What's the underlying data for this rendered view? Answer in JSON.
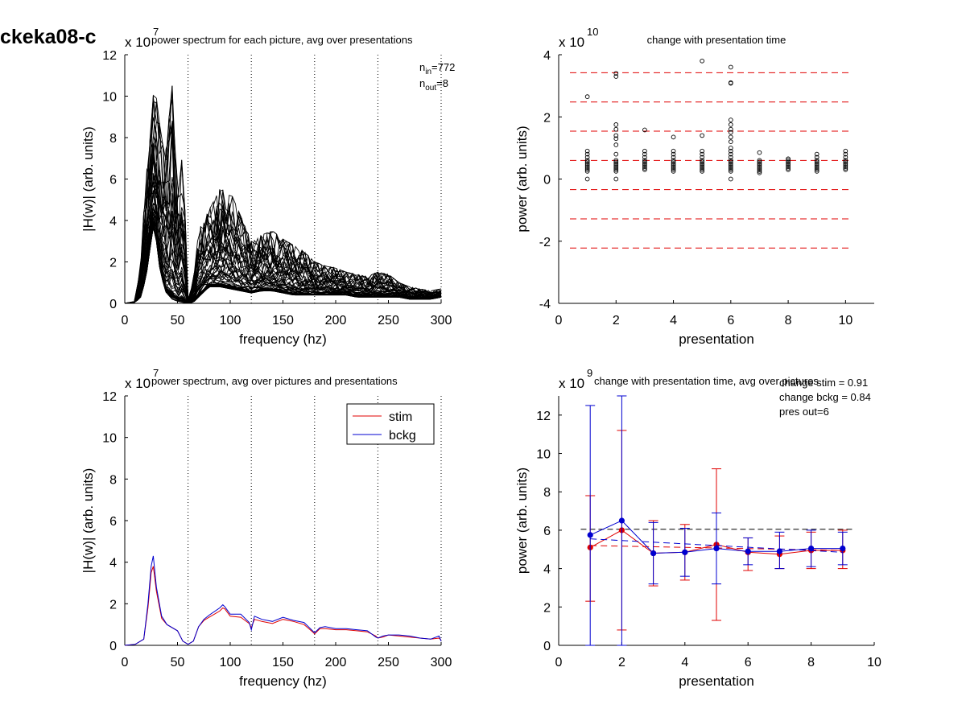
{
  "figure": {
    "title": "ckeka08-c"
  },
  "chart_data": [
    {
      "type": "line",
      "title": "power spectrum for each picture, avg over presentations",
      "xlabel": "frequency (hz)",
      "ylabel": "|H(w)| (arb. units)",
      "exponent_label": "x 10",
      "exponent_power": "7",
      "xlim": [
        0,
        300
      ],
      "ylim": [
        0,
        12
      ],
      "xticks": [
        "0",
        "50",
        "100",
        "150",
        "200",
        "250",
        "300"
      ],
      "yticks": [
        "0",
        "2",
        "4",
        "6",
        "8",
        "10",
        "12"
      ],
      "vlines": [
        60,
        120,
        180,
        240,
        300
      ],
      "annotations": {
        "n_in": "n",
        "n_in_sub": "in",
        "n_in_val": "=772",
        "n_out": "n",
        "n_out_sub": "out",
        "n_out_val": "=8"
      },
      "series_description": "many overlapping black traces (one per picture)",
      "envelope": {
        "x": [
          0,
          10,
          15,
          20,
          25,
          28,
          32,
          38,
          45,
          50,
          55,
          60,
          65,
          70,
          80,
          90,
          100,
          110,
          120,
          130,
          140,
          150,
          160,
          170,
          180,
          190,
          200,
          210,
          220,
          230,
          240,
          250,
          260,
          270,
          280,
          290,
          300
        ],
        "low": [
          0,
          0.05,
          0.3,
          1.2,
          3.0,
          4.0,
          2.0,
          0.6,
          0.2,
          0.1,
          0.05,
          0.0,
          0.05,
          0.3,
          0.8,
          0.8,
          0.7,
          0.6,
          0.5,
          0.6,
          0.6,
          0.5,
          0.4,
          0.4,
          0.4,
          0.4,
          0.4,
          0.4,
          0.3,
          0.3,
          0.3,
          0.3,
          0.3,
          0.2,
          0.2,
          0.2,
          0.3
        ],
        "high": [
          0,
          0.1,
          2.0,
          6.0,
          8.5,
          10.8,
          9.0,
          7.0,
          10.5,
          5.0,
          7.4,
          0.2,
          1.0,
          3.5,
          4.5,
          5.5,
          5.4,
          4.2,
          3.0,
          3.3,
          3.5,
          3.1,
          2.8,
          2.5,
          2.0,
          1.8,
          1.7,
          1.5,
          1.4,
          1.3,
          1.5,
          1.4,
          1.0,
          0.8,
          0.7,
          0.6,
          0.7
        ]
      }
    },
    {
      "type": "scatter",
      "title": "change with presentation time",
      "xlabel": "presentation",
      "ylabel": "power (arb. units)",
      "exponent_label": "x 10",
      "exponent_power": "10",
      "xlim": [
        0,
        11
      ],
      "ylim": [
        -4,
        4
      ],
      "xticks": [
        "0",
        "2",
        "4",
        "6",
        "8",
        "10"
      ],
      "yticks": [
        "-4",
        "-2",
        "0",
        "2",
        "4"
      ],
      "hlines_dashed_red": [
        3.42,
        2.48,
        1.54,
        0.6,
        -0.34,
        -1.28,
        -2.22
      ],
      "points": [
        {
          "x": 1,
          "y": [
            2.65,
            0.9,
            0.8,
            0.7,
            0.6,
            0.55,
            0.5,
            0.45,
            0.4,
            0.35,
            0.3,
            0.25,
            0.0
          ]
        },
        {
          "x": 2,
          "y": [
            3.4,
            3.3,
            1.75,
            1.6,
            1.4,
            1.3,
            1.1,
            0.8,
            0.6,
            0.55,
            0.5,
            0.45,
            0.4,
            0.35,
            0.3,
            0.25,
            0.0
          ]
        },
        {
          "x": 3,
          "y": [
            1.58,
            0.9,
            0.8,
            0.7,
            0.6,
            0.55,
            0.5,
            0.45,
            0.4,
            0.35,
            0.3
          ]
        },
        {
          "x": 4,
          "y": [
            1.35,
            0.9,
            0.8,
            0.7,
            0.6,
            0.55,
            0.5,
            0.45,
            0.4,
            0.35,
            0.3,
            0.25
          ]
        },
        {
          "x": 5,
          "y": [
            3.8,
            1.4,
            0.9,
            0.8,
            0.7,
            0.6,
            0.55,
            0.5,
            0.45,
            0.4,
            0.35,
            0.3,
            0.25
          ]
        },
        {
          "x": 6,
          "y": [
            3.6,
            3.1,
            3.08,
            1.9,
            1.75,
            1.6,
            1.5,
            1.35,
            1.2,
            1.0,
            0.9,
            0.8,
            0.7,
            0.6,
            0.55,
            0.5,
            0.45,
            0.4,
            0.35,
            0.3,
            0.25,
            0.0
          ]
        },
        {
          "x": 7,
          "y": [
            0.85,
            0.6,
            0.55,
            0.5,
            0.45,
            0.4,
            0.35,
            0.3,
            0.25,
            0.2
          ]
        },
        {
          "x": 8,
          "y": [
            0.65,
            0.6,
            0.55,
            0.5,
            0.45,
            0.4,
            0.35,
            0.3
          ]
        },
        {
          "x": 9,
          "y": [
            0.8,
            0.7,
            0.6,
            0.55,
            0.5,
            0.45,
            0.4,
            0.35,
            0.3,
            0.25
          ]
        },
        {
          "x": 10,
          "y": [
            0.9,
            0.8,
            0.7,
            0.6,
            0.55,
            0.5,
            0.45,
            0.4,
            0.35,
            0.3
          ]
        }
      ]
    },
    {
      "type": "line",
      "title": "power spectrum, avg over pictures and presentations",
      "xlabel": "frequency (hz)",
      "ylabel": "|H(w)| (arb. units)",
      "exponent_label": "x 10",
      "exponent_power": "7",
      "xlim": [
        0,
        300
      ],
      "ylim": [
        0,
        12
      ],
      "xticks": [
        "0",
        "50",
        "100",
        "150",
        "200",
        "250",
        "300"
      ],
      "yticks": [
        "0",
        "2",
        "4",
        "6",
        "8",
        "10",
        "12"
      ],
      "vlines": [
        60,
        120,
        180,
        240,
        300
      ],
      "legend": {
        "position": "top-right",
        "entries": [
          "stim",
          "bckg"
        ]
      },
      "x": [
        0,
        10,
        18,
        22,
        25,
        27,
        30,
        35,
        40,
        50,
        55,
        60,
        65,
        70,
        75,
        80,
        90,
        93,
        95,
        100,
        110,
        118,
        120,
        123,
        130,
        140,
        150,
        160,
        170,
        178,
        180,
        185,
        190,
        200,
        210,
        220,
        230,
        238,
        240,
        245,
        250,
        260,
        270,
        280,
        290,
        298,
        300
      ],
      "series": [
        {
          "name": "stim",
          "color": "#e00000",
          "values": [
            0.0,
            0.05,
            0.3,
            1.8,
            3.5,
            3.8,
            2.6,
            1.3,
            1.0,
            0.7,
            0.2,
            0.05,
            0.2,
            0.9,
            1.2,
            1.35,
            1.65,
            1.8,
            1.75,
            1.4,
            1.35,
            1.05,
            0.85,
            1.25,
            1.15,
            1.05,
            1.25,
            1.15,
            1.0,
            0.65,
            0.55,
            0.8,
            0.8,
            0.75,
            0.75,
            0.7,
            0.65,
            0.45,
            0.35,
            0.4,
            0.5,
            0.45,
            0.4,
            0.35,
            0.3,
            0.35,
            0.25
          ]
        },
        {
          "name": "bckg",
          "color": "#0000d0",
          "values": [
            0.0,
            0.05,
            0.3,
            2.0,
            3.8,
            4.3,
            2.8,
            1.4,
            1.0,
            0.7,
            0.2,
            0.05,
            0.2,
            0.9,
            1.25,
            1.45,
            1.8,
            1.95,
            1.85,
            1.5,
            1.5,
            1.1,
            0.75,
            1.4,
            1.25,
            1.15,
            1.35,
            1.2,
            1.1,
            0.7,
            0.6,
            0.85,
            0.9,
            0.8,
            0.8,
            0.75,
            0.7,
            0.4,
            0.35,
            0.45,
            0.5,
            0.5,
            0.45,
            0.35,
            0.3,
            0.45,
            0.2
          ]
        }
      ]
    },
    {
      "type": "line",
      "title": "change with presentation time, avg over pictures",
      "xlabel": "presentation",
      "ylabel": "power (arb. units)",
      "exponent_label": "x 10",
      "exponent_power": "9",
      "xlim": [
        0,
        10
      ],
      "ylim": [
        0,
        13
      ],
      "xticks": [
        "0",
        "2",
        "4",
        "6",
        "8",
        "10"
      ],
      "yticks": [
        "0",
        "2",
        "4",
        "6",
        "8",
        "10",
        "12"
      ],
      "annotations": [
        "change stim = 0.91",
        "change bckg = 0.84",
        "pres out=6"
      ],
      "hline_dashed_black": 6.05,
      "x": [
        1,
        2,
        3,
        4,
        5,
        6,
        7,
        8,
        9
      ],
      "series": [
        {
          "name": "stim",
          "color": "#e00000",
          "values": [
            5.1,
            6.0,
            4.8,
            4.85,
            5.25,
            4.85,
            4.75,
            4.95,
            4.95
          ],
          "err_low": [
            2.3,
            0.8,
            3.1,
            3.4,
            1.3,
            3.9,
            4.0,
            4.0,
            4.0
          ],
          "err_high": [
            7.8,
            11.2,
            6.5,
            6.3,
            9.2,
            5.6,
            5.7,
            5.9,
            6.0
          ],
          "trend": [
            5.2,
            4.95
          ]
        },
        {
          "name": "bckg",
          "color": "#0000d0",
          "values": [
            5.75,
            6.5,
            4.8,
            4.85,
            5.05,
            4.9,
            4.9,
            5.05,
            5.05
          ],
          "err_low": [
            0.0,
            0.0,
            3.2,
            3.6,
            3.2,
            4.2,
            4.0,
            4.1,
            4.2
          ],
          "err_high": [
            12.5,
            13.0,
            6.4,
            6.1,
            6.9,
            5.6,
            5.9,
            6.0,
            5.9
          ],
          "trend": [
            5.55,
            4.85
          ]
        }
      ]
    }
  ]
}
